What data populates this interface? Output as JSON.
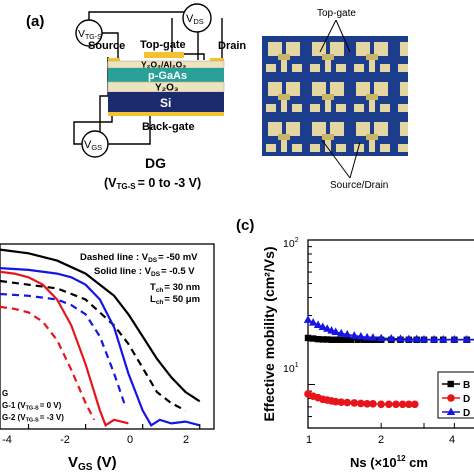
{
  "panel_a": {
    "label": "(a)",
    "vtgs": "V",
    "vtgs_sub": "TG-S",
    "vds": "V",
    "vds_sub": "DS",
    "vgs": "V",
    "vgs_sub": "GS",
    "source": "Source",
    "drain": "Drain",
    "topgate": "Top-gate",
    "layer_oxide": "Y₂O₃/Al₂O₃",
    "layer_pgaas": "p-GaAs",
    "layer_y2o3": "Y₂O₃",
    "layer_si": "Si",
    "backgate": "Back-gate",
    "dg_title": "DG",
    "dg_sub_pre": "(V",
    "dg_sub_sub": "TG-S",
    "dg_sub_post": "= 0 to -3 V)",
    "micro_topgate": "Top-gate",
    "micro_sourcedrain": "Source/Drain"
  },
  "panel_b": {
    "legend_dashed": "Dashed line : V",
    "legend_dashed_sub": "DS",
    "legend_dashed_val": "= -50 mV",
    "legend_solid": "Solid line : V",
    "legend_solid_sub": "DS",
    "legend_solid_val": "= -0.5 V",
    "tch_pre": "T",
    "tch_sub": "ch",
    "tch_val": "= 30 nm",
    "lch_pre": "L",
    "lch_sub": "ch",
    "lch_val": "= 50 μm",
    "key1": "G",
    "key2_pre": "G-1 (V",
    "key2_sub": "TG-S",
    "key2_post": "= 0 V)",
    "key3_pre": "G-2 (V",
    "key3_sub": "TG-S",
    "key3_post": "= -3 V)",
    "xlabel_pre": "V",
    "xlabel_sub": "GS",
    "xlabel_post": " (V)",
    "xticks": [
      "-4",
      "-2",
      "0",
      "2"
    ]
  },
  "panel_c": {
    "label": "(c)",
    "ylabel": "Effective mobility (cm²/Vs)",
    "xlabel_pre": "Ns (×10",
    "xlabel_sup": "12",
    "xlabel_post": " cm",
    "ytick_top_base": "10",
    "ytick_top_exp": "2",
    "ytick_mid_base": "10",
    "ytick_mid_exp": "1",
    "xticks": [
      "1",
      "2",
      "4"
    ],
    "legend": [
      "B",
      "D",
      "D"
    ]
  },
  "colors": {
    "black": "#000000",
    "red": "#e8141b",
    "blue": "#1515e6",
    "gold": "#f2c230",
    "teal": "#2aa198",
    "navy": "#1c2a6e",
    "tan": "#ece4c0",
    "micro_bg": "#1c3c8c"
  },
  "chart_data": [
    {
      "type": "line",
      "panel": "b",
      "xlabel": "VGS (V)",
      "ylabel": "",
      "xlim": [
        -5,
        2.5
      ],
      "y_scale": "log",
      "series": [
        {
          "color": "black",
          "style": "solid",
          "x": [
            -5,
            -4,
            -3,
            -2,
            -1,
            -0.5,
            0,
            0.5,
            1,
            1.5,
            2
          ],
          "y": [
            0.97,
            0.95,
            0.91,
            0.84,
            0.72,
            0.62,
            0.5,
            0.38,
            0.28,
            0.2,
            0.15
          ]
        },
        {
          "color": "black",
          "style": "dashed",
          "x": [
            -5,
            -4,
            -3,
            -2,
            -1,
            -0.5,
            0,
            0.5,
            1,
            1.5
          ],
          "y": [
            0.8,
            0.78,
            0.76,
            0.7,
            0.56,
            0.46,
            0.33,
            0.2,
            0.14,
            0.1
          ]
        },
        {
          "color": "blue",
          "style": "solid",
          "x": [
            -5,
            -4,
            -3,
            -2.5,
            -2,
            -1.5,
            -1,
            -0.5,
            0,
            0.3,
            0.6,
            1,
            1.5,
            2
          ],
          "y": [
            0.87,
            0.86,
            0.84,
            0.82,
            0.78,
            0.7,
            0.55,
            0.3,
            0.1,
            0.02,
            0.05,
            0.03,
            0.04,
            0.02
          ]
        },
        {
          "color": "blue",
          "style": "dashed",
          "x": [
            -5,
            -4,
            -3,
            -2.5,
            -2,
            -1.5,
            -1,
            -0.6
          ],
          "y": [
            0.73,
            0.72,
            0.7,
            0.67,
            0.62,
            0.5,
            0.3,
            0.12
          ]
        },
        {
          "color": "red",
          "style": "solid",
          "x": [
            -5,
            -4.5,
            -4,
            -3.5,
            -3,
            -2.5,
            -2,
            -1.5,
            -1.3,
            -1,
            -0.5
          ],
          "y": [
            0.85,
            0.84,
            0.82,
            0.78,
            0.7,
            0.56,
            0.35,
            0.1,
            0.02,
            0.05,
            0.03
          ]
        },
        {
          "color": "red",
          "style": "dashed",
          "x": [
            -5,
            -4.5,
            -4,
            -3.5,
            -3,
            -2.5,
            -2,
            -1.7
          ],
          "y": [
            0.66,
            0.65,
            0.63,
            0.58,
            0.48,
            0.32,
            0.14,
            0.05
          ]
        }
      ]
    },
    {
      "type": "scatter",
      "panel": "c",
      "xlabel": "Ns (×10^12 cm",
      "ylabel": "Effective mobility (cm2/Vs)",
      "x_scale": "log",
      "y_scale": "log",
      "xlim": [
        1,
        5
      ],
      "ylim": [
        5,
        100
      ],
      "series": [
        {
          "marker": "square",
          "color": "black",
          "x": [
            1.0,
            1.05,
            1.1,
            1.15,
            1.2,
            1.25,
            1.3,
            1.35,
            1.42,
            1.5,
            1.6,
            1.7,
            1.8,
            1.9,
            2.0,
            2.2,
            2.4,
            2.6,
            2.8,
            3.0,
            3.3,
            3.6,
            4.0,
            4.5,
            5.0
          ],
          "y": [
            21,
            20.8,
            20.6,
            20.5,
            20.5,
            20.4,
            20.4,
            20.4,
            20.4,
            20.4,
            20.4,
            20.4,
            20.4,
            20.4,
            20.4,
            20.4,
            20.4,
            20.4,
            20.4,
            20.4,
            20.4,
            20.4,
            20.4,
            20.4,
            20.4
          ]
        },
        {
          "marker": "circle",
          "color": "red",
          "x": [
            1.0,
            1.05,
            1.1,
            1.15,
            1.2,
            1.25,
            1.3,
            1.37,
            1.45,
            1.55,
            1.65,
            1.75,
            1.85,
            2.0,
            2.15,
            2.3,
            2.45,
            2.6,
            2.75
          ],
          "y": [
            8.6,
            8.3,
            8.1,
            7.9,
            7.8,
            7.7,
            7.6,
            7.55,
            7.5,
            7.45,
            7.4,
            7.35,
            7.35,
            7.3,
            7.3,
            7.3,
            7.3,
            7.3,
            7.3
          ]
        },
        {
          "marker": "triangle",
          "color": "blue",
          "x": [
            1.0,
            1.05,
            1.1,
            1.15,
            1.2,
            1.25,
            1.3,
            1.37,
            1.45,
            1.55,
            1.65,
            1.75,
            1.85,
            2.0,
            2.2,
            2.4,
            2.6,
            2.8,
            3.0,
            3.3,
            3.6,
            4.0,
            4.5,
            5.0
          ],
          "y": [
            28,
            26.8,
            25.8,
            25,
            24.3,
            23.6,
            23.1,
            22.6,
            22.2,
            21.8,
            21.5,
            21.2,
            21.1,
            20.9,
            20.8,
            20.7,
            20.6,
            20.6,
            20.5,
            20.5,
            20.5,
            20.5,
            20.5,
            20.5
          ]
        }
      ],
      "legend": [
        "B",
        "D",
        "D"
      ]
    }
  ]
}
